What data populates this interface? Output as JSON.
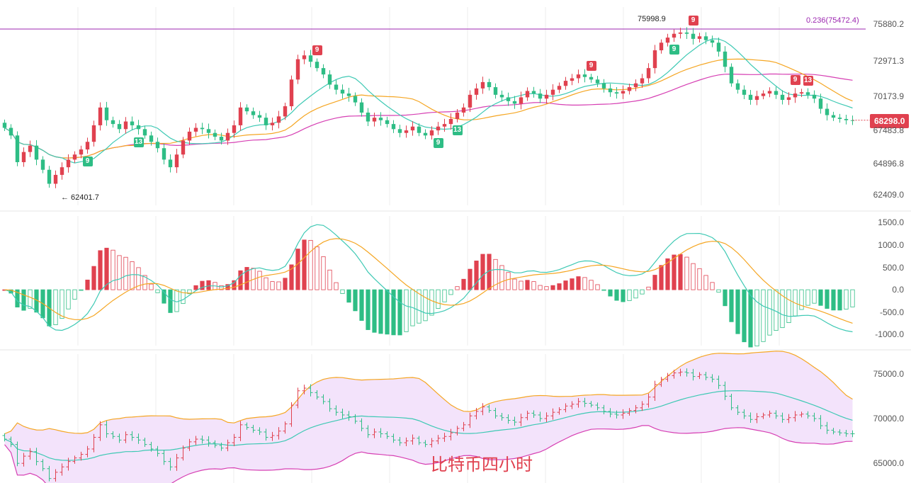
{
  "chart_data": [
    {
      "type": "candlestick",
      "panel": "price",
      "y_ticks": [
        "75880.2",
        "72971.3",
        "70173.9",
        "67483.8",
        "64896.8",
        "62409.0"
      ],
      "last_price": "68298.0",
      "fib_label": "0.236(75472.4)",
      "high_label": "75998.9",
      "low_label": "← 62401.7",
      "td_marks": [
        {
          "text": "9",
          "color": "green"
        },
        {
          "text": "13",
          "color": "green"
        },
        {
          "text": "9",
          "color": "red"
        },
        {
          "text": "9",
          "color": "green"
        },
        {
          "text": "13",
          "color": "green"
        },
        {
          "text": "9",
          "color": "red"
        },
        {
          "text": "9",
          "color": "red"
        },
        {
          "text": "9",
          "color": "red"
        },
        {
          "text": "13",
          "color": "red"
        },
        {
          "text": "9",
          "color": "green"
        }
      ],
      "ylim": [
        61600,
        77200
      ],
      "closes": [
        67700,
        67100,
        65000,
        65800,
        66300,
        65200,
        64400,
        63300,
        64000,
        64600,
        65200,
        65600,
        66000,
        66600,
        67900,
        69300,
        68300,
        68000,
        67600,
        68200,
        67900,
        67600,
        67100,
        66600,
        66100,
        65200,
        64600,
        65600,
        66700,
        67400,
        67700,
        67600,
        67300,
        67000,
        66700,
        67300,
        67900,
        69300,
        69000,
        68700,
        68500,
        67900,
        68100,
        68600,
        69400,
        71500,
        73100,
        73400,
        72900,
        72400,
        71900,
        71100,
        70700,
        70400,
        70200,
        69700,
        68900,
        68200,
        68500,
        68300,
        68000,
        67600,
        67300,
        67500,
        67800,
        67300,
        67100,
        67500,
        67800,
        68000,
        68400,
        68900,
        69300,
        70300,
        70800,
        71300,
        70900,
        70300,
        70100,
        69800,
        69600,
        70100,
        70600,
        70400,
        70000,
        70300,
        70700,
        71000,
        71400,
        71600,
        71900,
        71700,
        71500,
        71200,
        70800,
        70500,
        70400,
        70600,
        70900,
        71200,
        71600,
        72400,
        73800,
        74400,
        74800,
        75100,
        75200,
        75100,
        74700,
        74900,
        74600,
        74400,
        73700,
        72500,
        71200,
        70700,
        70300,
        69900,
        70200,
        70400,
        70600,
        70300,
        69900,
        70100,
        70400,
        70500,
        70300,
        70000,
        69200,
        68700,
        68500,
        68400,
        68300,
        68298
      ]
    },
    {
      "type": "macd",
      "panel": "macd",
      "y_ticks": [
        "1500.0",
        "1000.0",
        "500.0",
        "0.0",
        "-500.0",
        "-1000.0"
      ],
      "ylim": [
        -1250,
        1650
      ]
    },
    {
      "type": "bollinger",
      "panel": "boll",
      "y_ticks": [
        "75000.0",
        "70000.0",
        "65000.0"
      ],
      "ylim": [
        62800,
        77200
      ]
    }
  ],
  "watermark": "比特币四小时",
  "colors": {
    "up": "#e0414f",
    "down": "#2ebd85",
    "ma_fast": "#3ec9b4",
    "ma_mid": "#f5a623",
    "ma_slow": "#d63fb3",
    "fib": "#9c27b0",
    "band_fill": "#f3e3fb",
    "band_edge_up": "#f5a623",
    "band_edge_low": "#d63fb3"
  }
}
